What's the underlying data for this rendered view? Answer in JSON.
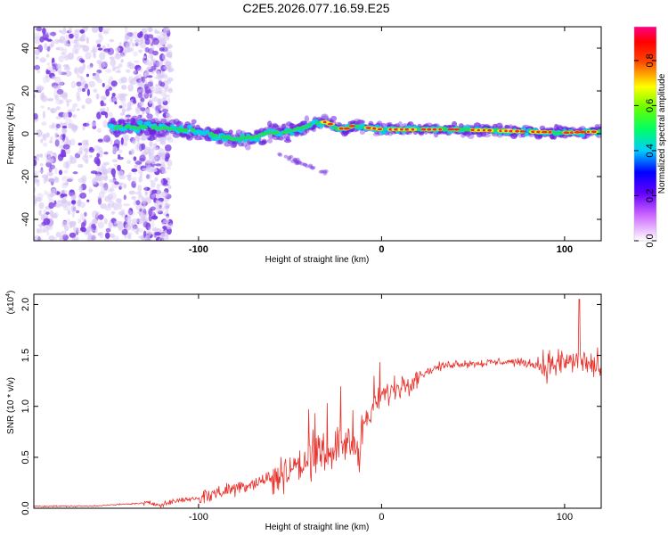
{
  "title": "C2E5.2026.077.16.59.E25",
  "colors": {
    "snr_line": "#e8302a",
    "ridge_core": "#e8302a",
    "ridge_mid": "#22dd55",
    "ridge_edge": "#00d8e8",
    "band_outer": "#6a1fe0",
    "noise_light": "#d8c8f4",
    "noise_dark": "#7a3ae4"
  },
  "chart_data": [
    {
      "type": "heatmap",
      "title": "C2E5.2026.077.16.59.E25",
      "xlabel": "Height of straight line (km)",
      "ylabel": "Frequency (Hz)",
      "xlim": [
        -190,
        120
      ],
      "ylim": [
        -50,
        50
      ],
      "x_ticks": [
        -100,
        0,
        100
      ],
      "y_ticks": [
        -40,
        -20,
        0,
        20,
        40
      ],
      "ridge": {
        "x": [
          -145,
          -130,
          -115,
          -100,
          -90,
          -80,
          -70,
          -60,
          -50,
          -40,
          -35,
          -30,
          -25,
          -20,
          -15,
          -10,
          -5,
          0,
          10,
          20,
          40,
          60,
          80,
          100,
          120
        ],
        "frequency": [
          3,
          3.5,
          2.5,
          1,
          -1,
          -2.5,
          -1.5,
          0.5,
          1,
          4,
          5,
          5.5,
          3,
          2,
          4,
          3,
          2.5,
          2,
          2,
          2,
          2,
          1.5,
          1,
          0.5,
          1
        ]
      },
      "colorbar": {
        "label": "Normalized spectral amplitude",
        "range": [
          0.0,
          0.95
        ],
        "ticks": [
          0.0,
          0.2,
          0.4,
          0.6,
          0.8
        ],
        "tick_labels": [
          "0.0",
          "0.2",
          "0.4",
          "0.6",
          "0.8"
        ],
        "colormap": [
          "#ffffff",
          "#9900cc",
          "#0000ff",
          "#00ffff",
          "#00ff00",
          "#ffff00",
          "#ff0000",
          "#ff00cc"
        ]
      }
    },
    {
      "type": "line",
      "xlabel": "Height of straight line (km)",
      "ylabel": "SNR (10 * v/v)",
      "y_multiplier": "(x10",
      "y_multiplier_exp": "4",
      "y_multiplier_close": ")",
      "xlim": [
        -190,
        120
      ],
      "ylim": [
        0,
        2.1
      ],
      "x_ticks": [
        -100,
        0,
        100
      ],
      "y_ticks": [
        0.0,
        0.5,
        1.0,
        1.5,
        2.0
      ],
      "y_tick_labels": [
        "0.0",
        "0.5",
        "1.0",
        "1.5",
        "2.0"
      ],
      "series": [
        {
          "name": "SNR",
          "x": [
            -190,
            -160,
            -130,
            -120,
            -110,
            -100,
            -90,
            -80,
            -70,
            -60,
            -50,
            -40,
            -30,
            -20,
            -12,
            -10,
            -5,
            0,
            10,
            20,
            30,
            40,
            50,
            60,
            70,
            80,
            90,
            100,
            110,
            120
          ],
          "y": [
            0.02,
            0.02,
            0.05,
            0.04,
            0.08,
            0.1,
            0.15,
            0.2,
            0.25,
            0.3,
            0.38,
            0.45,
            0.55,
            0.65,
            0.55,
            0.8,
            0.95,
            1.1,
            1.2,
            1.3,
            1.38,
            1.42,
            1.42,
            1.43,
            1.44,
            1.42,
            1.4,
            1.43,
            1.45,
            1.35
          ],
          "peak": {
            "x": 108,
            "y": 2.05
          }
        }
      ]
    }
  ]
}
